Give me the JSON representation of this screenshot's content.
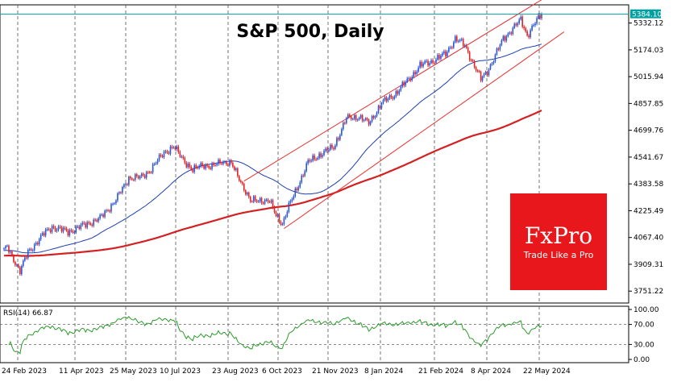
{
  "chart_data": {
    "type": "candlestick",
    "title": "S&P 500, Daily",
    "price_ylim": [
      3700,
      5430
    ],
    "price_ticks": [
      {
        "value": 5332.12,
        "label": "5332.12"
      },
      {
        "value": 5174.03,
        "label": "5174.03"
      },
      {
        "value": 5015.94,
        "label": "5015.94"
      },
      {
        "value": 4857.85,
        "label": "4857.85"
      },
      {
        "value": 4699.76,
        "label": "4699.76"
      },
      {
        "value": 4541.67,
        "label": "4541.67"
      },
      {
        "value": 4383.58,
        "label": "4383.58"
      },
      {
        "value": 4225.49,
        "label": "4225.49"
      },
      {
        "value": 4067.4,
        "label": "4067.40"
      },
      {
        "value": 3909.31,
        "label": "3909.31"
      },
      {
        "value": 3751.22,
        "label": "3751.22"
      }
    ],
    "last_price": {
      "value": 5384.1,
      "label": "5384.10",
      "color": "#00a0a0"
    },
    "x_labels": [
      "24 Feb 2023",
      "11 Apr 2023",
      "25 May 2023",
      "10 Jul 2023",
      "23 Aug 2023",
      "6 Oct 2023",
      "21 Nov 2023",
      "8 Jan 2024",
      "21 Feb 2024",
      "8 Apr 2024",
      "22 May 2024"
    ],
    "anchors": [
      {
        "day": 0,
        "v": 3990
      },
      {
        "day": 2,
        "v": 4010
      },
      {
        "day": 10,
        "v": 3870
      },
      {
        "day": 15,
        "v": 3980
      },
      {
        "day": 25,
        "v": 4090
      },
      {
        "day": 30,
        "v": 4130
      },
      {
        "day": 40,
        "v": 4100
      },
      {
        "day": 50,
        "v": 4140
      },
      {
        "day": 60,
        "v": 4180
      },
      {
        "day": 70,
        "v": 4290
      },
      {
        "day": 78,
        "v": 4420
      },
      {
        "day": 85,
        "v": 4420
      },
      {
        "day": 92,
        "v": 4470
      },
      {
        "day": 100,
        "v": 4570
      },
      {
        "day": 106,
        "v": 4600
      },
      {
        "day": 112,
        "v": 4530
      },
      {
        "day": 118,
        "v": 4460
      },
      {
        "day": 124,
        "v": 4500
      },
      {
        "day": 130,
        "v": 4480
      },
      {
        "day": 136,
        "v": 4520
      },
      {
        "day": 142,
        "v": 4500
      },
      {
        "day": 148,
        "v": 4400
      },
      {
        "day": 154,
        "v": 4280
      },
      {
        "day": 160,
        "v": 4290
      },
      {
        "day": 166,
        "v": 4280
      },
      {
        "day": 170,
        "v": 4200
      },
      {
        "day": 174,
        "v": 4150
      },
      {
        "day": 178,
        "v": 4250
      },
      {
        "day": 184,
        "v": 4380
      },
      {
        "day": 190,
        "v": 4510
      },
      {
        "day": 198,
        "v": 4560
      },
      {
        "day": 206,
        "v": 4600
      },
      {
        "day": 214,
        "v": 4770
      },
      {
        "day": 222,
        "v": 4780
      },
      {
        "day": 228,
        "v": 4740
      },
      {
        "day": 236,
        "v": 4860
      },
      {
        "day": 244,
        "v": 4910
      },
      {
        "day": 252,
        "v": 4990
      },
      {
        "day": 260,
        "v": 5080
      },
      {
        "day": 268,
        "v": 5110
      },
      {
        "day": 276,
        "v": 5150
      },
      {
        "day": 282,
        "v": 5240
      },
      {
        "day": 288,
        "v": 5200
      },
      {
        "day": 293,
        "v": 5100
      },
      {
        "day": 298,
        "v": 5000
      },
      {
        "day": 302,
        "v": 5050
      },
      {
        "day": 306,
        "v": 5120
      },
      {
        "day": 312,
        "v": 5240
      },
      {
        "day": 318,
        "v": 5300
      },
      {
        "day": 323,
        "v": 5350
      },
      {
        "day": 327,
        "v": 5260
      },
      {
        "day": 331,
        "v": 5320
      },
      {
        "day": 336,
        "v": 5384
      }
    ],
    "indicators": {
      "ma50": {
        "color": "#1c3fb0"
      },
      "ma200": {
        "color": "#d42020"
      },
      "channel": {
        "color": "#e83030",
        "upper": [
          [
            150,
            4400
          ],
          [
            350,
            5550
          ]
        ],
        "lower": [
          [
            175,
            4120
          ],
          [
            350,
            5280
          ]
        ]
      }
    },
    "rsi": {
      "label": "RSI(14) 66.87",
      "value": 66.87,
      "levels": [
        70,
        30
      ],
      "ticks": [
        "100.00",
        "70.00",
        "30.00",
        "0.00"
      ],
      "ylim": [
        0,
        100
      ]
    }
  },
  "watermark": {
    "brand": "FxPro",
    "tagline": "Trade Like a Pro",
    "bg": "#e8171b"
  },
  "colors": {
    "up": "#2b56d9",
    "down": "#e02424"
  }
}
